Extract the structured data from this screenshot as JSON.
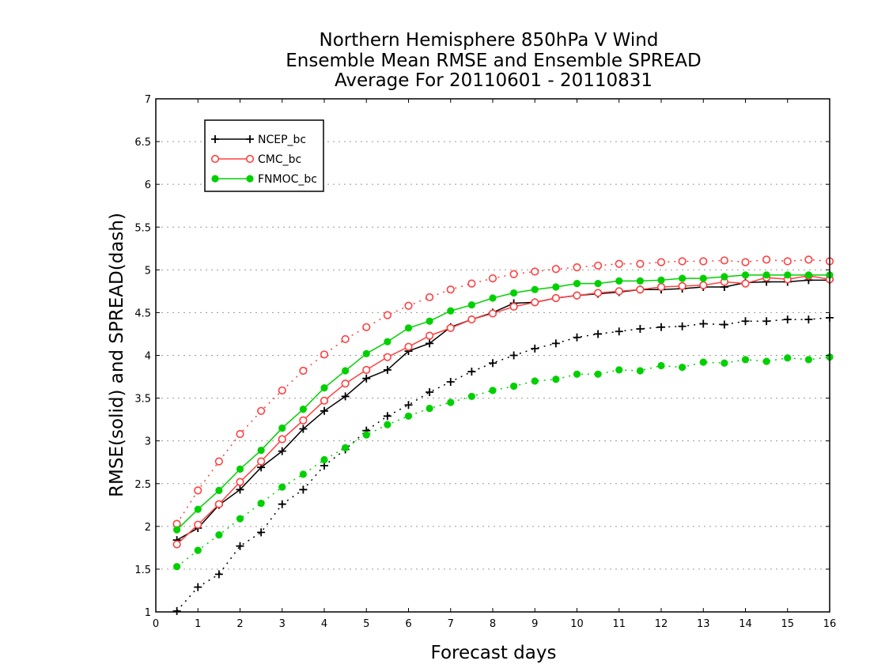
{
  "chart_data": {
    "type": "line",
    "title": [
      "Northern Hemisphere 850hPa V Wind",
      "Ensemble Mean RMSE and Ensemble SPREAD",
      "Average For 20110601 - 20110831"
    ],
    "xlabel": "Forecast days",
    "ylabel": "RMSE(solid) and SPREAD(dash)",
    "xlim": [
      0,
      16
    ],
    "ylim": [
      1,
      7
    ],
    "xticks": [
      "0",
      "1",
      "2",
      "3",
      "4",
      "5",
      "6",
      "7",
      "8",
      "9",
      "10",
      "11",
      "12",
      "13",
      "14",
      "15",
      "16"
    ],
    "yticks": [
      "1",
      "1.5",
      "2",
      "2.5",
      "3",
      "3.5",
      "4",
      "4.5",
      "5",
      "5.5",
      "6",
      "6.5",
      "7"
    ],
    "grid": true,
    "legend_position": "top-left",
    "x": [
      0.5,
      1,
      1.5,
      2,
      2.5,
      3,
      3.5,
      4,
      4.5,
      5,
      5.5,
      6,
      6.5,
      7,
      7.5,
      8,
      8.5,
      9,
      9.5,
      10,
      10.5,
      11,
      11.5,
      12,
      12.5,
      13,
      13.5,
      14,
      14.5,
      15,
      15.5,
      16
    ],
    "series": [
      {
        "name": "NCEP_bc",
        "color": "#000000",
        "marker": "plus",
        "rmse": [
          1.84,
          1.98,
          2.25,
          2.43,
          2.69,
          2.88,
          3.14,
          3.35,
          3.52,
          3.73,
          3.83,
          4.05,
          4.14,
          4.33,
          4.42,
          4.5,
          4.61,
          4.62,
          4.67,
          4.7,
          4.72,
          4.74,
          4.77,
          4.77,
          4.78,
          4.8,
          4.8,
          4.85,
          4.86,
          4.86,
          4.88,
          4.88
        ],
        "spread": [
          1.01,
          1.29,
          1.44,
          1.77,
          1.93,
          2.26,
          2.43,
          2.71,
          2.9,
          3.12,
          3.29,
          3.42,
          3.57,
          3.69,
          3.81,
          3.91,
          4.0,
          4.08,
          4.14,
          4.21,
          4.25,
          4.28,
          4.31,
          4.33,
          4.34,
          4.37,
          4.36,
          4.4,
          4.4,
          4.42,
          4.42,
          4.44
        ]
      },
      {
        "name": "CMC_bc",
        "color": "#ff4040",
        "marker": "circle",
        "rmse": [
          1.79,
          2.02,
          2.26,
          2.52,
          2.76,
          3.02,
          3.24,
          3.47,
          3.67,
          3.83,
          3.98,
          4.1,
          4.23,
          4.32,
          4.42,
          4.49,
          4.57,
          4.62,
          4.67,
          4.7,
          4.73,
          4.75,
          4.77,
          4.8,
          4.81,
          4.82,
          4.86,
          4.84,
          4.91,
          4.89,
          4.93,
          4.89
        ],
        "spread": [
          2.03,
          2.42,
          2.76,
          3.08,
          3.35,
          3.59,
          3.82,
          4.01,
          4.19,
          4.33,
          4.47,
          4.58,
          4.68,
          4.77,
          4.84,
          4.9,
          4.95,
          4.98,
          5.01,
          5.03,
          5.05,
          5.07,
          5.07,
          5.09,
          5.1,
          5.1,
          5.11,
          5.09,
          5.12,
          5.1,
          5.12,
          5.1
        ]
      },
      {
        "name": "FNMOC_bc",
        "color": "#00d000",
        "marker": "dot",
        "rmse": [
          1.96,
          2.2,
          2.42,
          2.67,
          2.89,
          3.15,
          3.37,
          3.62,
          3.82,
          4.02,
          4.16,
          4.32,
          4.4,
          4.52,
          4.59,
          4.67,
          4.73,
          4.77,
          4.8,
          4.84,
          4.84,
          4.87,
          4.87,
          4.88,
          4.9,
          4.9,
          4.92,
          4.94,
          4.94,
          4.94,
          4.94,
          4.94
        ],
        "spread": [
          1.53,
          1.72,
          1.9,
          2.09,
          2.27,
          2.46,
          2.61,
          2.78,
          2.92,
          3.07,
          3.19,
          3.29,
          3.38,
          3.45,
          3.52,
          3.59,
          3.64,
          3.7,
          3.72,
          3.78,
          3.78,
          3.83,
          3.82,
          3.88,
          3.86,
          3.92,
          3.91,
          3.95,
          3.93,
          3.97,
          3.95,
          3.98
        ]
      }
    ]
  }
}
